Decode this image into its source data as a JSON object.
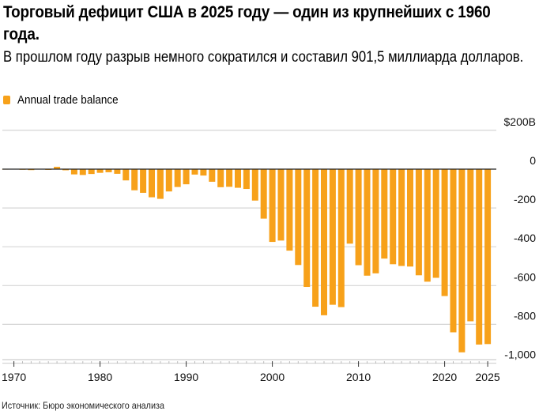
{
  "title": "Торговый дефицит США в 2025 году — один из крупнейших с 1960 года.",
  "subtitle": "В прошлом году разрыв немного сократился и составил 901,5 миллиарда долларов.",
  "source": "Источник: Бюро экономического анализа",
  "chart_data": {
    "type": "bar",
    "legend": [
      {
        "name": "Annual trade balance",
        "color": "#F7A11A"
      }
    ],
    "legend_placement": "top-left",
    "x": [
      1969,
      1970,
      1971,
      1972,
      1973,
      1974,
      1975,
      1976,
      1977,
      1978,
      1979,
      1980,
      1981,
      1982,
      1983,
      1984,
      1985,
      1986,
      1987,
      1988,
      1989,
      1990,
      1991,
      1992,
      1993,
      1994,
      1995,
      1996,
      1997,
      1998,
      1999,
      2000,
      2001,
      2002,
      2003,
      2004,
      2005,
      2006,
      2007,
      2008,
      2009,
      2010,
      2011,
      2012,
      2013,
      2014,
      2015,
      2016,
      2017,
      2018,
      2019,
      2020,
      2021,
      2022,
      2023,
      2024,
      2025
    ],
    "series": [
      {
        "name": "Annual trade balance",
        "values": [
          1,
          2,
          -1,
          -5,
          2,
          -4,
          12,
          -6,
          -27,
          -30,
          -25,
          -19,
          -16,
          -24,
          -58,
          -109,
          -122,
          -145,
          -153,
          -115,
          -92,
          -78,
          -28,
          -33,
          -65,
          -93,
          -91,
          -96,
          -102,
          -162,
          -255,
          -375,
          -368,
          -420,
          -494,
          -607,
          -709,
          -753,
          -699,
          -711,
          -384,
          -495,
          -549,
          -537,
          -461,
          -490,
          -499,
          -502,
          -547,
          -580,
          -560,
          -654,
          -841,
          -944,
          -784,
          -904,
          -901.5
        ]
      }
    ],
    "ylim": [
      -1000,
      200
    ],
    "yticks": [
      200,
      0,
      -200,
      -400,
      -600,
      -800,
      -1000
    ],
    "ytick_labels": [
      "$200B",
      "0",
      "-200",
      "-400",
      "-600",
      "-800",
      "-1,000"
    ],
    "xticks": [
      1970,
      1980,
      1990,
      2000,
      2010,
      2020,
      2025
    ],
    "xtick_labels": [
      "1970",
      "1980",
      "1990",
      "2000",
      "2010",
      "2020",
      "2025"
    ],
    "grid": true,
    "bar_color": "#F7A11A"
  }
}
